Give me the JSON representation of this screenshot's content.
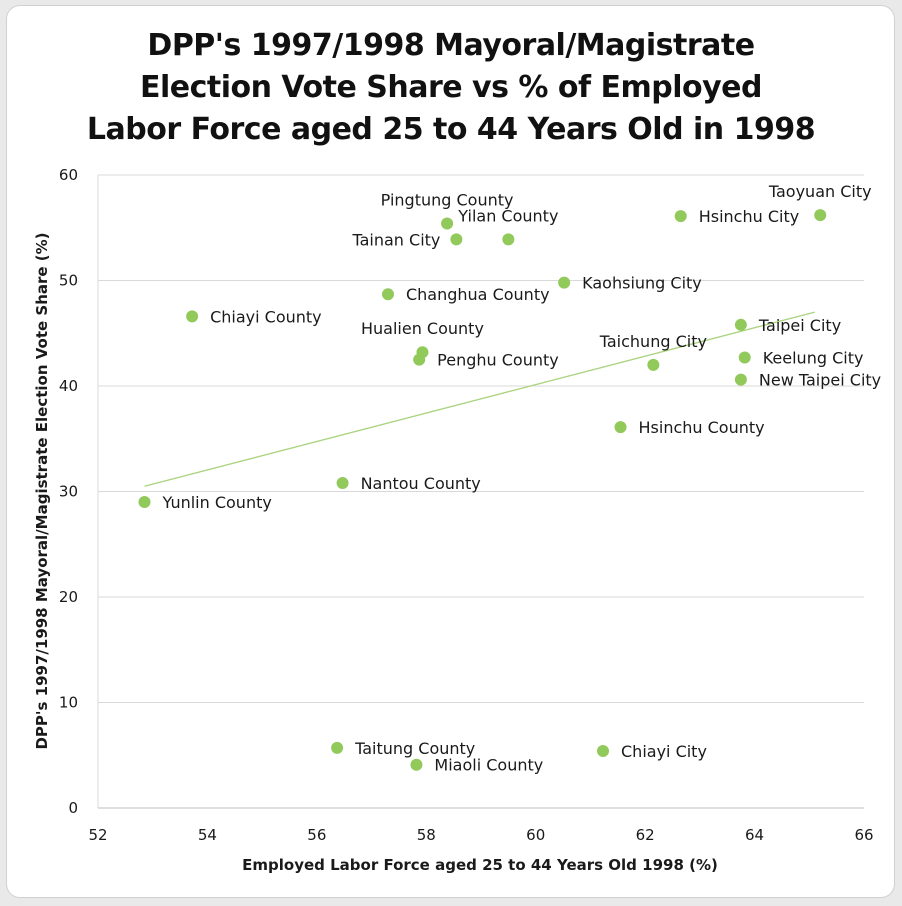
{
  "chart_data": {
    "type": "scatter",
    "title_lines": [
      "DPP's 1997/1998 Mayoral/Magistrate",
      "Election Vote Share vs % of Employed",
      "Labor Force aged 25 to 44 Years Old in 1998"
    ],
    "xlabel": "Employed Labor Force aged 25 to 44 Years Old 1998 (%)",
    "ylabel": "DPP's 1997/1998 Mayoral/Magistrate Election Vote Share (%)",
    "xlim": [
      52,
      66
    ],
    "ylim": [
      0,
      60
    ],
    "xticks": [
      52,
      54,
      56,
      58,
      60,
      62,
      64,
      66
    ],
    "yticks": [
      0,
      10,
      20,
      30,
      40,
      50,
      60
    ],
    "grid": "horizontal",
    "point_color": "#92c95b",
    "trendline_color": "#a9d37e",
    "trendline": {
      "x": [
        52.85,
        65.1
      ],
      "y": [
        30.5,
        47.0
      ]
    },
    "points": [
      {
        "label": "Taoyuan City",
        "x": 65.2,
        "y": 56.2,
        "label_pos": "above"
      },
      {
        "label": "Hsinchu City",
        "x": 62.65,
        "y": 56.1,
        "label_pos": "right"
      },
      {
        "label": "Pingtung County",
        "x": 58.38,
        "y": 55.4,
        "label_pos": "above"
      },
      {
        "label": "Yilan County",
        "x": 59.5,
        "y": 53.9,
        "label_pos": "above"
      },
      {
        "label": "Tainan City",
        "x": 58.55,
        "y": 53.9,
        "label_pos": "left"
      },
      {
        "label": "Kaohsiung City",
        "x": 60.52,
        "y": 49.8,
        "label_pos": "right"
      },
      {
        "label": "Changhua County",
        "x": 57.3,
        "y": 48.7,
        "label_pos": "right"
      },
      {
        "label": "Chiayi County",
        "x": 53.72,
        "y": 46.6,
        "label_pos": "right"
      },
      {
        "label": "Taipei City",
        "x": 63.75,
        "y": 45.8,
        "label_pos": "right"
      },
      {
        "label": "Hualien County",
        "x": 57.93,
        "y": 43.2,
        "label_pos": "above"
      },
      {
        "label": "Penghu County",
        "x": 57.87,
        "y": 42.5,
        "label_pos": "right"
      },
      {
        "label": "Taichung City",
        "x": 62.15,
        "y": 42.0,
        "label_pos": "above"
      },
      {
        "label": "Keelung City",
        "x": 63.82,
        "y": 42.7,
        "label_pos": "right"
      },
      {
        "label": "New Taipei City",
        "x": 63.75,
        "y": 40.6,
        "label_pos": "right"
      },
      {
        "label": "Hsinchu County",
        "x": 61.55,
        "y": 36.1,
        "label_pos": "right"
      },
      {
        "label": "Nantou County",
        "x": 56.47,
        "y": 30.8,
        "label_pos": "right"
      },
      {
        "label": "Yunlin County",
        "x": 52.85,
        "y": 29.0,
        "label_pos": "right"
      },
      {
        "label": "Taitung County",
        "x": 56.37,
        "y": 5.7,
        "label_pos": "right"
      },
      {
        "label": "Miaoli County",
        "x": 57.82,
        "y": 4.1,
        "label_pos": "right"
      },
      {
        "label": "Chiayi City",
        "x": 61.23,
        "y": 5.4,
        "label_pos": "right"
      }
    ]
  }
}
